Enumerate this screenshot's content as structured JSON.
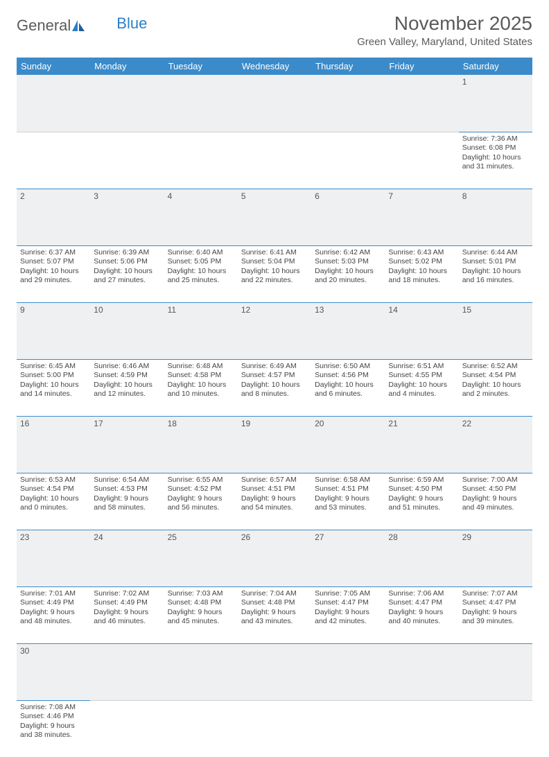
{
  "logo": {
    "text1": "General",
    "text2": "Blue"
  },
  "title": "November 2025",
  "location": "Green Valley, Maryland, United States",
  "colors": {
    "header_bg": "#3b8bca",
    "header_text": "#ffffff",
    "daynum_bg": "#eef0f1",
    "row_border": "#3b8bca",
    "body_text": "#444444",
    "title_text": "#5a5a5a"
  },
  "weekdays": [
    "Sunday",
    "Monday",
    "Tuesday",
    "Wednesday",
    "Thursday",
    "Friday",
    "Saturday"
  ],
  "weeks": [
    [
      null,
      null,
      null,
      null,
      null,
      null,
      {
        "d": "1",
        "sr": "Sunrise: 7:36 AM",
        "ss": "Sunset: 6:08 PM",
        "dl1": "Daylight: 10 hours",
        "dl2": "and 31 minutes."
      }
    ],
    [
      {
        "d": "2",
        "sr": "Sunrise: 6:37 AM",
        "ss": "Sunset: 5:07 PM",
        "dl1": "Daylight: 10 hours",
        "dl2": "and 29 minutes."
      },
      {
        "d": "3",
        "sr": "Sunrise: 6:39 AM",
        "ss": "Sunset: 5:06 PM",
        "dl1": "Daylight: 10 hours",
        "dl2": "and 27 minutes."
      },
      {
        "d": "4",
        "sr": "Sunrise: 6:40 AM",
        "ss": "Sunset: 5:05 PM",
        "dl1": "Daylight: 10 hours",
        "dl2": "and 25 minutes."
      },
      {
        "d": "5",
        "sr": "Sunrise: 6:41 AM",
        "ss": "Sunset: 5:04 PM",
        "dl1": "Daylight: 10 hours",
        "dl2": "and 22 minutes."
      },
      {
        "d": "6",
        "sr": "Sunrise: 6:42 AM",
        "ss": "Sunset: 5:03 PM",
        "dl1": "Daylight: 10 hours",
        "dl2": "and 20 minutes."
      },
      {
        "d": "7",
        "sr": "Sunrise: 6:43 AM",
        "ss": "Sunset: 5:02 PM",
        "dl1": "Daylight: 10 hours",
        "dl2": "and 18 minutes."
      },
      {
        "d": "8",
        "sr": "Sunrise: 6:44 AM",
        "ss": "Sunset: 5:01 PM",
        "dl1": "Daylight: 10 hours",
        "dl2": "and 16 minutes."
      }
    ],
    [
      {
        "d": "9",
        "sr": "Sunrise: 6:45 AM",
        "ss": "Sunset: 5:00 PM",
        "dl1": "Daylight: 10 hours",
        "dl2": "and 14 minutes."
      },
      {
        "d": "10",
        "sr": "Sunrise: 6:46 AM",
        "ss": "Sunset: 4:59 PM",
        "dl1": "Daylight: 10 hours",
        "dl2": "and 12 minutes."
      },
      {
        "d": "11",
        "sr": "Sunrise: 6:48 AM",
        "ss": "Sunset: 4:58 PM",
        "dl1": "Daylight: 10 hours",
        "dl2": "and 10 minutes."
      },
      {
        "d": "12",
        "sr": "Sunrise: 6:49 AM",
        "ss": "Sunset: 4:57 PM",
        "dl1": "Daylight: 10 hours",
        "dl2": "and 8 minutes."
      },
      {
        "d": "13",
        "sr": "Sunrise: 6:50 AM",
        "ss": "Sunset: 4:56 PM",
        "dl1": "Daylight: 10 hours",
        "dl2": "and 6 minutes."
      },
      {
        "d": "14",
        "sr": "Sunrise: 6:51 AM",
        "ss": "Sunset: 4:55 PM",
        "dl1": "Daylight: 10 hours",
        "dl2": "and 4 minutes."
      },
      {
        "d": "15",
        "sr": "Sunrise: 6:52 AM",
        "ss": "Sunset: 4:54 PM",
        "dl1": "Daylight: 10 hours",
        "dl2": "and 2 minutes."
      }
    ],
    [
      {
        "d": "16",
        "sr": "Sunrise: 6:53 AM",
        "ss": "Sunset: 4:54 PM",
        "dl1": "Daylight: 10 hours",
        "dl2": "and 0 minutes."
      },
      {
        "d": "17",
        "sr": "Sunrise: 6:54 AM",
        "ss": "Sunset: 4:53 PM",
        "dl1": "Daylight: 9 hours",
        "dl2": "and 58 minutes."
      },
      {
        "d": "18",
        "sr": "Sunrise: 6:55 AM",
        "ss": "Sunset: 4:52 PM",
        "dl1": "Daylight: 9 hours",
        "dl2": "and 56 minutes."
      },
      {
        "d": "19",
        "sr": "Sunrise: 6:57 AM",
        "ss": "Sunset: 4:51 PM",
        "dl1": "Daylight: 9 hours",
        "dl2": "and 54 minutes."
      },
      {
        "d": "20",
        "sr": "Sunrise: 6:58 AM",
        "ss": "Sunset: 4:51 PM",
        "dl1": "Daylight: 9 hours",
        "dl2": "and 53 minutes."
      },
      {
        "d": "21",
        "sr": "Sunrise: 6:59 AM",
        "ss": "Sunset: 4:50 PM",
        "dl1": "Daylight: 9 hours",
        "dl2": "and 51 minutes."
      },
      {
        "d": "22",
        "sr": "Sunrise: 7:00 AM",
        "ss": "Sunset: 4:50 PM",
        "dl1": "Daylight: 9 hours",
        "dl2": "and 49 minutes."
      }
    ],
    [
      {
        "d": "23",
        "sr": "Sunrise: 7:01 AM",
        "ss": "Sunset: 4:49 PM",
        "dl1": "Daylight: 9 hours",
        "dl2": "and 48 minutes."
      },
      {
        "d": "24",
        "sr": "Sunrise: 7:02 AM",
        "ss": "Sunset: 4:49 PM",
        "dl1": "Daylight: 9 hours",
        "dl2": "and 46 minutes."
      },
      {
        "d": "25",
        "sr": "Sunrise: 7:03 AM",
        "ss": "Sunset: 4:48 PM",
        "dl1": "Daylight: 9 hours",
        "dl2": "and 45 minutes."
      },
      {
        "d": "26",
        "sr": "Sunrise: 7:04 AM",
        "ss": "Sunset: 4:48 PM",
        "dl1": "Daylight: 9 hours",
        "dl2": "and 43 minutes."
      },
      {
        "d": "27",
        "sr": "Sunrise: 7:05 AM",
        "ss": "Sunset: 4:47 PM",
        "dl1": "Daylight: 9 hours",
        "dl2": "and 42 minutes."
      },
      {
        "d": "28",
        "sr": "Sunrise: 7:06 AM",
        "ss": "Sunset: 4:47 PM",
        "dl1": "Daylight: 9 hours",
        "dl2": "and 40 minutes."
      },
      {
        "d": "29",
        "sr": "Sunrise: 7:07 AM",
        "ss": "Sunset: 4:47 PM",
        "dl1": "Daylight: 9 hours",
        "dl2": "and 39 minutes."
      }
    ],
    [
      {
        "d": "30",
        "sr": "Sunrise: 7:08 AM",
        "ss": "Sunset: 4:46 PM",
        "dl1": "Daylight: 9 hours",
        "dl2": "and 38 minutes."
      },
      null,
      null,
      null,
      null,
      null,
      null
    ]
  ]
}
